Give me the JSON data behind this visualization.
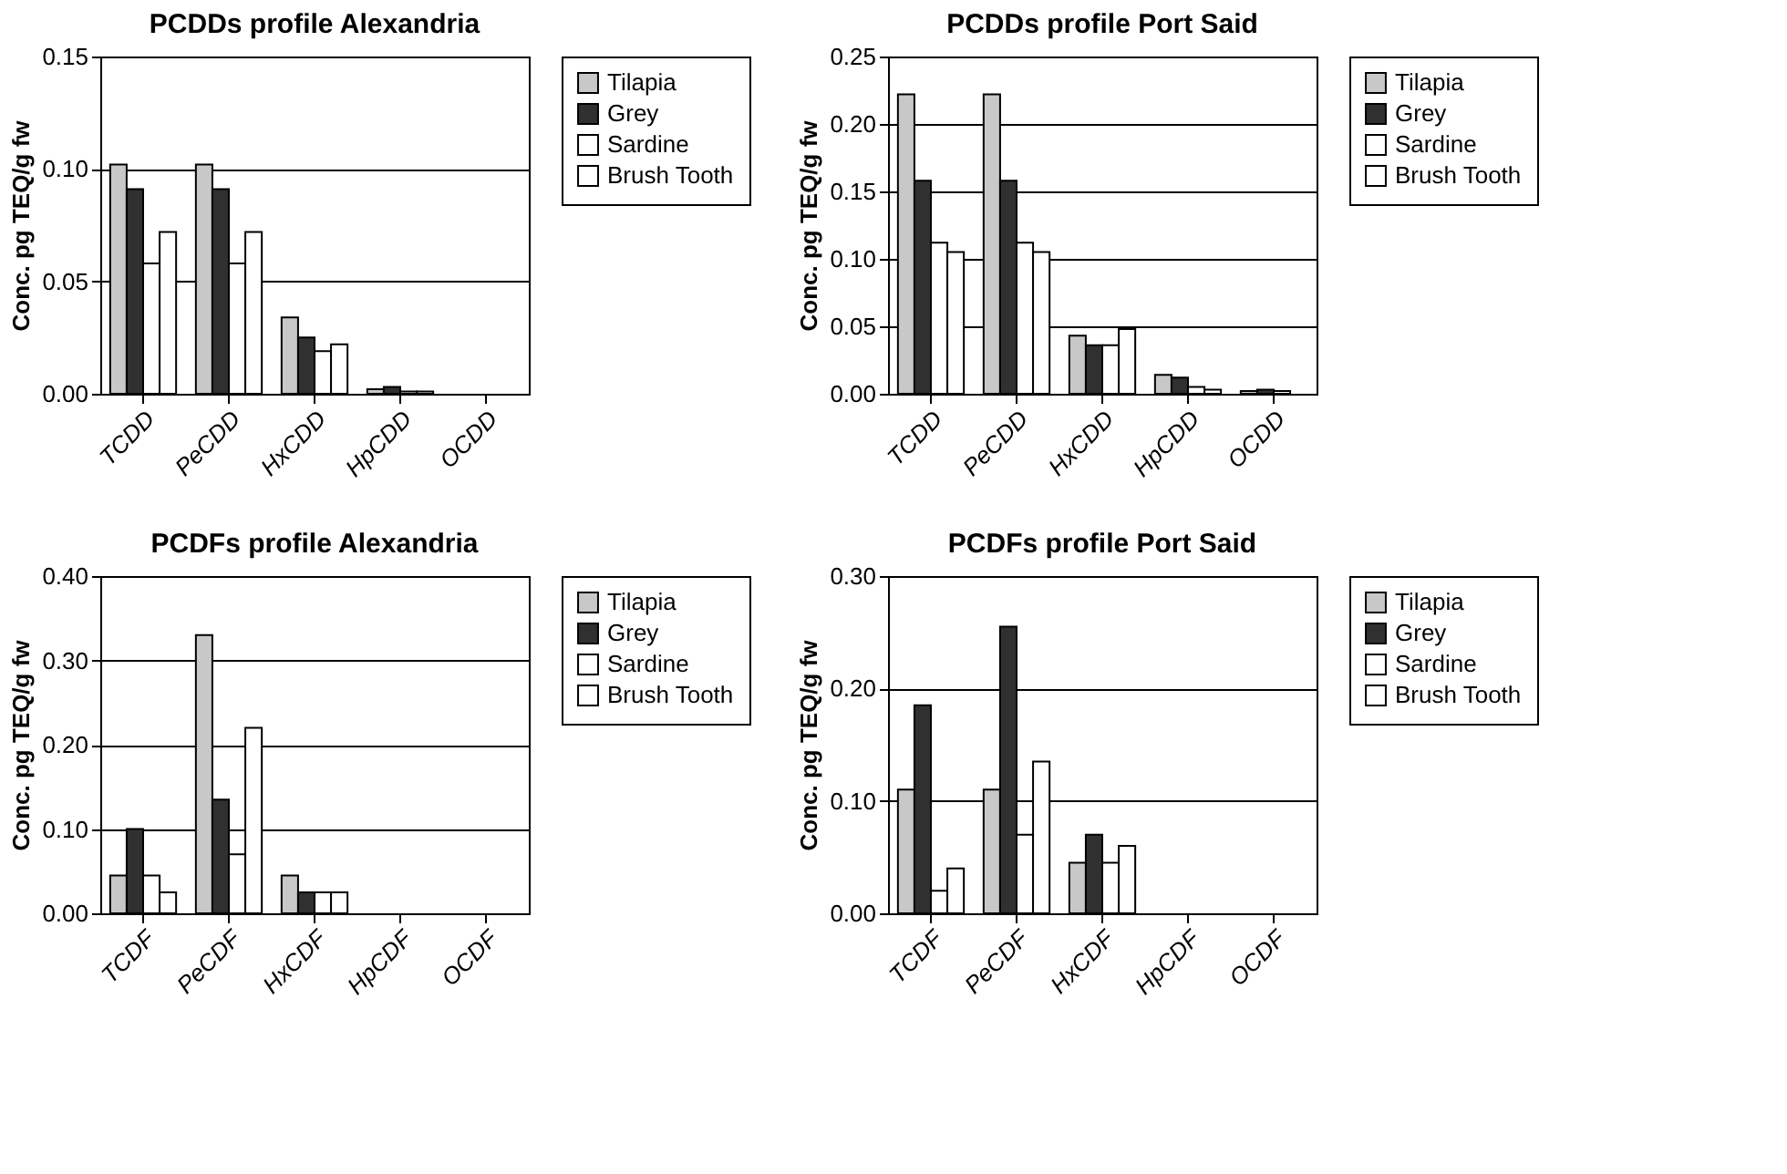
{
  "chart_data": [
    {
      "type": "bar",
      "title": "PCDDs profile Alexandria",
      "ylabel": "Conc. pg TEQ/g fw",
      "categories": [
        "TCDD",
        "PeCDD",
        "HxCDD",
        "HpCDD",
        "OCDD"
      ],
      "series": [
        {
          "name": "Tilapia",
          "color": "#c8c8c8",
          "values": [
            0.102,
            0.102,
            0.034,
            0.002,
            null
          ]
        },
        {
          "name": "Grey",
          "color": "#303030",
          "values": [
            0.091,
            0.091,
            0.025,
            0.003,
            null
          ]
        },
        {
          "name": "Sardine",
          "color": "#ffffff",
          "values": [
            0.058,
            0.058,
            0.019,
            0.001,
            null
          ]
        },
        {
          "name": "Brush Tooth",
          "color": "#ffffff",
          "values": [
            0.072,
            0.072,
            0.022,
            0.001,
            null
          ]
        }
      ],
      "ylim": [
        0,
        0.15
      ],
      "yticks": [
        {
          "value": 0,
          "label": "0.00"
        },
        {
          "value": 0.05,
          "label": "0.05"
        },
        {
          "value": 0.1,
          "label": "0.10"
        },
        {
          "value": 0.15,
          "label": "0.15"
        }
      ],
      "grid": "y",
      "legend": "right"
    },
    {
      "type": "bar",
      "title": "PCDDs profile Port Said",
      "ylabel": "Conc. pg TEQ/g fw",
      "categories": [
        "TCDD",
        "PeCDD",
        "HxCDD",
        "HpCDD",
        "OCDD"
      ],
      "series": [
        {
          "name": "Tilapia",
          "color": "#c8c8c8",
          "values": [
            0.222,
            0.222,
            0.043,
            0.014,
            0.002
          ]
        },
        {
          "name": "Grey",
          "color": "#303030",
          "values": [
            0.158,
            0.158,
            0.036,
            0.012,
            0.003
          ]
        },
        {
          "name": "Sardine",
          "color": "#ffffff",
          "values": [
            0.112,
            0.112,
            0.036,
            0.005,
            0.002
          ]
        },
        {
          "name": "Brush Tooth",
          "color": "#ffffff",
          "values": [
            0.105,
            0.105,
            0.048,
            0.003,
            null
          ]
        }
      ],
      "ylim": [
        0,
        0.25
      ],
      "yticks": [
        {
          "value": 0,
          "label": "0.00"
        },
        {
          "value": 0.05,
          "label": "0.05"
        },
        {
          "value": 0.1,
          "label": "0.10"
        },
        {
          "value": 0.15,
          "label": "0.15"
        },
        {
          "value": 0.2,
          "label": "0.20"
        },
        {
          "value": 0.25,
          "label": "0.25"
        }
      ],
      "grid": "y",
      "legend": "right"
    },
    {
      "type": "bar",
      "title": "PCDFs profile Alexandria",
      "ylabel": "Conc. pg TEQ/g fw",
      "categories": [
        "TCDF",
        "PeCDF",
        "HxCDF",
        "HpCDF",
        "OCDF"
      ],
      "series": [
        {
          "name": "Tilapia",
          "color": "#c8c8c8",
          "values": [
            0.045,
            0.33,
            0.045,
            null,
            null
          ]
        },
        {
          "name": "Grey",
          "color": "#303030",
          "values": [
            0.1,
            0.135,
            0.025,
            null,
            null
          ]
        },
        {
          "name": "Sardine",
          "color": "#ffffff",
          "values": [
            0.045,
            0.07,
            0.025,
            null,
            null
          ]
        },
        {
          "name": "Brush Tooth",
          "color": "#ffffff",
          "values": [
            0.025,
            0.22,
            0.025,
            null,
            null
          ]
        }
      ],
      "ylim": [
        0,
        0.4
      ],
      "yticks": [
        {
          "value": 0,
          "label": "0.00"
        },
        {
          "value": 0.1,
          "label": "0.10"
        },
        {
          "value": 0.2,
          "label": "0.20"
        },
        {
          "value": 0.3,
          "label": "0.30"
        },
        {
          "value": 0.4,
          "label": "0.40"
        }
      ],
      "grid": "y",
      "legend": "right"
    },
    {
      "type": "bar",
      "title": "PCDFs profile Port Said",
      "ylabel": "Conc. pg TEQ/g fw",
      "categories": [
        "TCDF",
        "PeCDF",
        "HxCDF",
        "HpCDF",
        "OCDF"
      ],
      "series": [
        {
          "name": "Tilapia",
          "color": "#c8c8c8",
          "values": [
            0.11,
            0.11,
            0.045,
            null,
            null
          ]
        },
        {
          "name": "Grey",
          "color": "#303030",
          "values": [
            0.185,
            0.255,
            0.07,
            null,
            null
          ]
        },
        {
          "name": "Sardine",
          "color": "#ffffff",
          "values": [
            0.02,
            0.07,
            0.045,
            null,
            null
          ]
        },
        {
          "name": "Brush Tooth",
          "color": "#ffffff",
          "values": [
            0.04,
            0.135,
            0.06,
            null,
            null
          ]
        }
      ],
      "ylim": [
        0,
        0.3
      ],
      "yticks": [
        {
          "value": 0,
          "label": "0.00"
        },
        {
          "value": 0.1,
          "label": "0.10"
        },
        {
          "value": 0.2,
          "label": "0.20"
        },
        {
          "value": 0.3,
          "label": "0.30"
        }
      ],
      "grid": "y",
      "legend": "right"
    }
  ]
}
